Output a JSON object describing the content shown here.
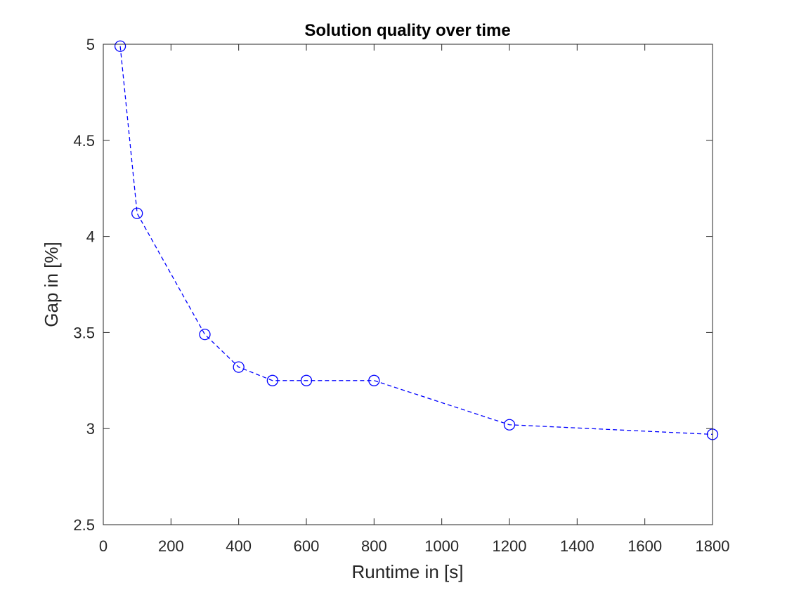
{
  "chart_data": {
    "type": "line",
    "title": "Solution quality over time",
    "xlabel": "Runtime in [s]",
    "ylabel": "Gap in [%]",
    "xlim": [
      0,
      1800
    ],
    "ylim": [
      2.5,
      5
    ],
    "xticks": [
      0,
      200,
      400,
      600,
      800,
      1000,
      1200,
      1400,
      1600,
      1800
    ],
    "yticks": [
      2.5,
      3,
      3.5,
      4,
      4.5,
      5
    ],
    "xtick_labels": [
      "0",
      "200",
      "400",
      "600",
      "800",
      "1000",
      "1200",
      "1400",
      "1600",
      "1800"
    ],
    "ytick_labels": [
      "2.5",
      "3",
      "3.5",
      "4",
      "4.5",
      "5"
    ],
    "grid": false,
    "line_style": "dashed",
    "marker": "circle",
    "series": [
      {
        "color": "#0000ff",
        "x": [
          50,
          100,
          300,
          400,
          500,
          600,
          800,
          1200,
          1800
        ],
        "y": [
          4.99,
          4.12,
          3.49,
          3.32,
          3.25,
          3.25,
          3.25,
          3.02,
          2.97
        ]
      }
    ]
  }
}
